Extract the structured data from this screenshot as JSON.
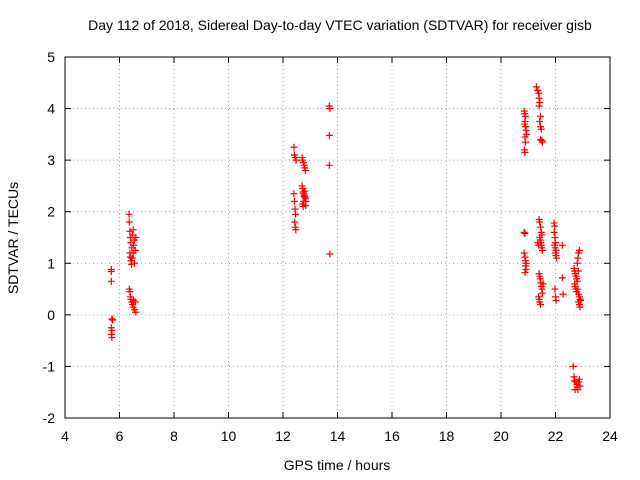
{
  "chart_data": {
    "type": "scatter",
    "title": "Day 112 of 2018, Sidereal Day-to-day VTEC variation (SDTVAR) for receiver gisb",
    "xlabel": "GPS time / hours",
    "ylabel": "SDTVAR / TECUs",
    "xlim": [
      4,
      24
    ],
    "ylim": [
      -2,
      5
    ],
    "x_ticks": [
      "4",
      "6",
      "8",
      "10",
      "12",
      "14",
      "16",
      "18",
      "20",
      "22",
      "24"
    ],
    "y_ticks": [
      "-2",
      "-1",
      "0",
      "1",
      "2",
      "3",
      "4",
      "5"
    ],
    "grid": true,
    "marker": "+",
    "color": "#ff0000",
    "series": [
      {
        "name": "SDTVAR",
        "points": [
          [
            5.7,
            0.88
          ],
          [
            5.7,
            0.84
          ],
          [
            5.7,
            0.65
          ],
          [
            5.72,
            -0.08
          ],
          [
            5.75,
            -0.1
          ],
          [
            5.7,
            -0.25
          ],
          [
            5.72,
            -0.3
          ],
          [
            5.7,
            -0.38
          ],
          [
            5.72,
            -0.44
          ],
          [
            6.35,
            1.95
          ],
          [
            6.36,
            1.8
          ],
          [
            6.38,
            1.62
          ],
          [
            6.4,
            1.5
          ],
          [
            6.42,
            1.4
          ],
          [
            6.45,
            1.3
          ],
          [
            6.38,
            1.2
          ],
          [
            6.4,
            1.12
          ],
          [
            6.42,
            1.05
          ],
          [
            6.44,
            0.98
          ],
          [
            6.46,
            1.1
          ],
          [
            6.5,
            1.2
          ],
          [
            6.52,
            1.35
          ],
          [
            6.55,
            1.45
          ],
          [
            6.48,
            1.55
          ],
          [
            6.5,
            1.65
          ],
          [
            6.55,
            1.0
          ],
          [
            6.58,
            1.25
          ],
          [
            6.6,
            1.5
          ],
          [
            6.36,
            0.5
          ],
          [
            6.38,
            0.45
          ],
          [
            6.4,
            0.35
          ],
          [
            6.42,
            0.3
          ],
          [
            6.45,
            0.25
          ],
          [
            6.48,
            0.2
          ],
          [
            6.5,
            0.15
          ],
          [
            6.52,
            0.28
          ],
          [
            6.55,
            0.1
          ],
          [
            6.58,
            0.25
          ],
          [
            6.6,
            0.05
          ],
          [
            12.4,
            3.25
          ],
          [
            12.42,
            3.1
          ],
          [
            12.45,
            3.05
          ],
          [
            12.48,
            3.0
          ],
          [
            12.4,
            2.35
          ],
          [
            12.42,
            2.2
          ],
          [
            12.44,
            2.05
          ],
          [
            12.46,
            1.95
          ],
          [
            12.43,
            1.8
          ],
          [
            12.45,
            1.7
          ],
          [
            12.47,
            1.65
          ],
          [
            12.7,
            3.05
          ],
          [
            12.72,
            3.0
          ],
          [
            12.75,
            2.95
          ],
          [
            12.78,
            2.9
          ],
          [
            12.8,
            2.85
          ],
          [
            12.82,
            2.8
          ],
          [
            12.7,
            2.5
          ],
          [
            12.72,
            2.45
          ],
          [
            12.74,
            2.38
          ],
          [
            12.76,
            2.35
          ],
          [
            12.78,
            2.3
          ],
          [
            12.8,
            2.28
          ],
          [
            12.82,
            2.25
          ],
          [
            12.84,
            2.2
          ],
          [
            12.72,
            2.15
          ],
          [
            12.74,
            2.1
          ],
          [
            12.76,
            2.2
          ],
          [
            12.78,
            2.32
          ],
          [
            12.8,
            2.4
          ],
          [
            12.83,
            2.12
          ],
          [
            13.7,
            4.05
          ],
          [
            13.72,
            4.0
          ],
          [
            13.7,
            3.48
          ],
          [
            13.7,
            2.9
          ],
          [
            13.72,
            1.18
          ],
          [
            20.85,
            3.95
          ],
          [
            20.87,
            3.9
          ],
          [
            20.9,
            3.85
          ],
          [
            20.88,
            3.75
          ],
          [
            20.86,
            3.7
          ],
          [
            20.9,
            3.65
          ],
          [
            20.92,
            3.58
          ],
          [
            20.94,
            3.5
          ],
          [
            20.88,
            3.45
          ],
          [
            20.9,
            3.35
          ],
          [
            20.86,
            3.2
          ],
          [
            20.88,
            3.15
          ],
          [
            20.85,
            1.6
          ],
          [
            20.88,
            1.58
          ],
          [
            20.85,
            1.2
          ],
          [
            20.88,
            1.12
          ],
          [
            20.9,
            1.05
          ],
          [
            20.92,
            1.0
          ],
          [
            20.9,
            0.95
          ],
          [
            20.92,
            0.88
          ],
          [
            20.88,
            0.82
          ],
          [
            21.3,
            4.42
          ],
          [
            21.35,
            4.35
          ],
          [
            21.38,
            4.3
          ],
          [
            21.4,
            4.2
          ],
          [
            21.42,
            4.12
          ],
          [
            21.4,
            4.05
          ],
          [
            21.45,
            3.85
          ],
          [
            21.42,
            3.75
          ],
          [
            21.45,
            3.65
          ],
          [
            21.48,
            3.6
          ],
          [
            21.45,
            3.4
          ],
          [
            21.5,
            3.38
          ],
          [
            21.52,
            3.35
          ],
          [
            21.4,
            1.85
          ],
          [
            21.42,
            1.8
          ],
          [
            21.45,
            1.7
          ],
          [
            21.48,
            1.6
          ],
          [
            21.5,
            1.55
          ],
          [
            21.42,
            1.5
          ],
          [
            21.44,
            1.45
          ],
          [
            21.46,
            1.4
          ],
          [
            21.48,
            1.35
          ],
          [
            21.5,
            1.3
          ],
          [
            21.52,
            1.25
          ],
          [
            21.35,
            1.4
          ],
          [
            21.38,
            1.35
          ],
          [
            21.4,
            0.8
          ],
          [
            21.42,
            0.75
          ],
          [
            21.44,
            0.7
          ],
          [
            21.46,
            0.62
          ],
          [
            21.48,
            0.55
          ],
          [
            21.5,
            0.5
          ],
          [
            21.52,
            0.42
          ],
          [
            21.38,
            0.35
          ],
          [
            21.4,
            0.3
          ],
          [
            21.42,
            0.25
          ],
          [
            21.45,
            0.2
          ],
          [
            21.55,
            0.6
          ],
          [
            21.95,
            1.78
          ],
          [
            21.97,
            1.72
          ],
          [
            21.95,
            1.6
          ],
          [
            21.98,
            1.5
          ],
          [
            22.0,
            1.4
          ],
          [
            21.97,
            1.35
          ],
          [
            21.99,
            1.3
          ],
          [
            22.02,
            1.25
          ],
          [
            22.0,
            1.2
          ],
          [
            22.02,
            1.15
          ],
          [
            22.04,
            1.1
          ],
          [
            21.98,
            0.5
          ],
          [
            22.0,
            0.35
          ],
          [
            22.02,
            0.28
          ],
          [
            22.25,
            1.35
          ],
          [
            22.25,
            0.72
          ],
          [
            22.28,
            0.4
          ],
          [
            22.65,
            -1.0
          ],
          [
            22.68,
            -1.2
          ],
          [
            22.7,
            -1.28
          ],
          [
            22.75,
            -1.3
          ],
          [
            22.78,
            -1.35
          ],
          [
            22.8,
            -1.4
          ],
          [
            22.82,
            -1.45
          ],
          [
            22.85,
            -1.3
          ],
          [
            22.88,
            -1.25
          ],
          [
            22.9,
            -1.38
          ],
          [
            22.72,
            -1.45
          ],
          [
            22.68,
            0.9
          ],
          [
            22.7,
            0.85
          ],
          [
            22.72,
            0.8
          ],
          [
            22.75,
            0.75
          ],
          [
            22.78,
            0.7
          ],
          [
            22.8,
            0.65
          ],
          [
            22.7,
            0.6
          ],
          [
            22.72,
            0.55
          ],
          [
            22.75,
            0.5
          ],
          [
            22.78,
            0.45
          ],
          [
            22.8,
            1.0
          ],
          [
            22.82,
            1.1
          ],
          [
            22.85,
            1.2
          ],
          [
            22.88,
            1.25
          ],
          [
            22.85,
            0.4
          ],
          [
            22.88,
            0.35
          ],
          [
            22.9,
            0.3
          ],
          [
            22.92,
            0.28
          ],
          [
            22.85,
            0.25
          ],
          [
            22.88,
            0.2
          ],
          [
            22.9,
            0.15
          ],
          [
            22.82,
            0.5
          ],
          [
            22.84,
            0.85
          ]
        ]
      }
    ]
  }
}
